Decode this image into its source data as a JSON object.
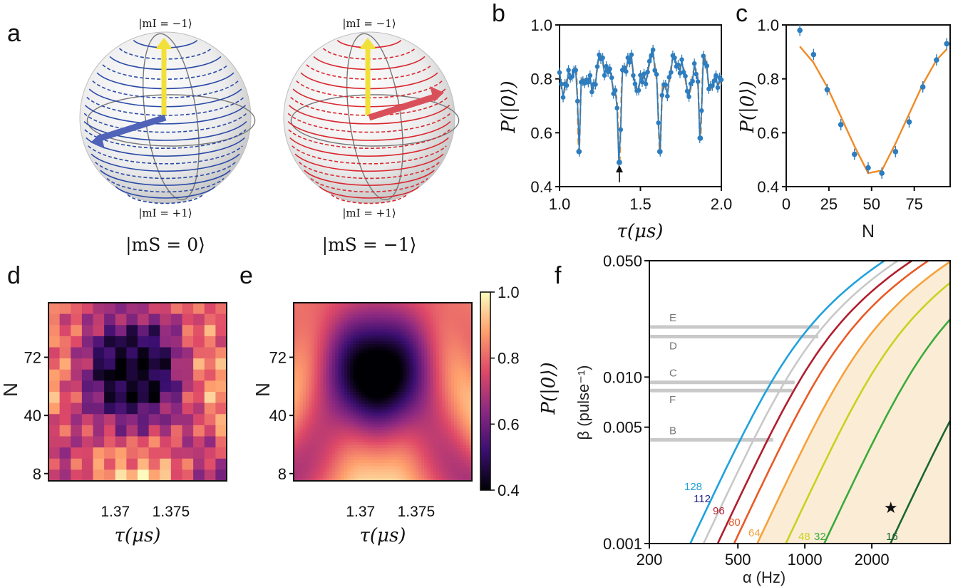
{
  "panels": {
    "a": {
      "label": "a",
      "spheres": [
        {
          "top_state": "|mI = −1⟩",
          "bottom_state": "|mI = +1⟩",
          "caption": "|mS = 0⟩",
          "color": "#2b4aa8",
          "arrow_color": "#4f63b8"
        },
        {
          "top_state": "|mI = −1⟩",
          "bottom_state": "|mI = +1⟩",
          "caption": "|mS = −1⟩",
          "color": "#d9282f",
          "arrow_color": "#d9505a"
        }
      ],
      "axis_color": "#f2e03a"
    },
    "b": {
      "label": "b"
    },
    "c": {
      "label": "c"
    },
    "d": {
      "label": "d"
    },
    "e": {
      "label": "e"
    },
    "f": {
      "label": "f"
    }
  },
  "chart_data": [
    {
      "id": "b",
      "type": "line",
      "xlabel": "τ(μs)",
      "ylabel": "P(|0⟩)",
      "xlim": [
        1.0,
        2.0
      ],
      "ylim": [
        0.4,
        1.0
      ],
      "xticks": [
        "1.0",
        "1.5",
        "2.0"
      ],
      "xtick_values": [
        1.0,
        1.5,
        2.0
      ],
      "yticks": [
        "0.4",
        "0.6",
        "0.8",
        "1.0"
      ],
      "ytick_values": [
        0.4,
        0.6,
        0.8,
        1.0
      ],
      "series": [
        {
          "name": "data",
          "color": "#2e7dbf",
          "dips": [
            [
              1.12,
              0.53
            ],
            [
              1.37,
              0.49
            ],
            [
              1.62,
              0.53
            ],
            [
              1.87,
              0.58
            ]
          ]
        },
        {
          "name": "fit",
          "color": "#f08a24"
        }
      ],
      "annotation": "arrow at τ = 1.37"
    },
    {
      "id": "c",
      "type": "scatter",
      "xlabel": "N",
      "ylabel": "P(|0⟩)",
      "xlim": [
        0,
        96
      ],
      "ylim": [
        0.4,
        1.0
      ],
      "xticks": [
        "0",
        "25",
        "50",
        "75"
      ],
      "xtick_values": [
        0,
        25,
        50,
        75
      ],
      "yticks": [
        "0.4",
        "0.6",
        "0.8",
        "1.0"
      ],
      "ytick_values": [
        0.4,
        0.6,
        0.8,
        1.0
      ],
      "x": [
        8,
        16,
        24,
        32,
        40,
        48,
        56,
        64,
        72,
        80,
        88,
        94
      ],
      "y": [
        0.98,
        0.89,
        0.76,
        0.63,
        0.52,
        0.47,
        0.45,
        0.53,
        0.64,
        0.77,
        0.87,
        0.93
      ],
      "fit_x": [
        8,
        16,
        24,
        32,
        40,
        48,
        56,
        64,
        72,
        80,
        88,
        94
      ],
      "fit_y": [
        0.92,
        0.86,
        0.77,
        0.66,
        0.55,
        0.45,
        0.46,
        0.56,
        0.67,
        0.78,
        0.87,
        0.91
      ],
      "colors": {
        "data": "#2e7dbf",
        "fit": "#f08a24"
      }
    },
    {
      "id": "d",
      "type": "heatmap",
      "xlabel": "τ(μs)",
      "ylabel": "N",
      "xticks": [
        "1.37",
        "1.375"
      ],
      "xtick_values": [
        1.37,
        1.375
      ],
      "yticks": [
        "8",
        "40",
        "72"
      ],
      "ytick_values": [
        8,
        40,
        72
      ],
      "xlim": [
        1.364,
        1.38
      ],
      "ylim": [
        4,
        102
      ],
      "rows": 16,
      "cols": 16
    },
    {
      "id": "e",
      "type": "heatmap",
      "xlabel": "τ(μs)",
      "ylabel": "N",
      "xticks": [
        "1.37",
        "1.375"
      ],
      "xtick_values": [
        1.37,
        1.375
      ],
      "yticks": [
        "8",
        "40",
        "72"
      ],
      "ytick_values": [
        8,
        40,
        72
      ],
      "xlim": [
        1.364,
        1.38
      ],
      "ylim": [
        4,
        102
      ],
      "colorbar": {
        "label": "P(|0⟩)",
        "range": [
          0.4,
          1.0
        ],
        "ticks": [
          "0.4",
          "0.6",
          "0.8",
          "1.0"
        ],
        "tick_values": [
          0.4,
          0.6,
          0.8,
          1.0
        ]
      }
    },
    {
      "id": "f",
      "type": "line",
      "xlabel": "α (Hz)",
      "ylabel": "β (pulse⁻¹)",
      "xscale": "log",
      "yscale": "log",
      "xlim": [
        200,
        4500
      ],
      "ylim": [
        0.001,
        0.05
      ],
      "xticks": [
        "200",
        "500",
        "1000",
        "2000"
      ],
      "xtick_values": [
        200,
        500,
        1000,
        2000
      ],
      "yticks": [
        "0.001",
        "0.005",
        "0.010",
        "0.050"
      ],
      "ytick_values": [
        0.001,
        0.005,
        0.01,
        0.05
      ],
      "curves": [
        {
          "n": "128",
          "alpha0": 305,
          "color": "#1fa2dc"
        },
        {
          "n": "112",
          "alpha0": 350,
          "color": "#c8c8c8",
          "label_color": "#2a2a8a"
        },
        {
          "n": "96",
          "alpha0": 405,
          "color": "#b01e2e"
        },
        {
          "n": "80",
          "alpha0": 480,
          "color": "#e85a26"
        },
        {
          "n": "64",
          "alpha0": 610,
          "color": "#f5a23a"
        },
        {
          "n": "48",
          "alpha0": 820,
          "color": "#c8d21e"
        },
        {
          "n": "32",
          "alpha0": 1220,
          "color": "#3aaa3a"
        },
        {
          "n": "16",
          "alpha0": 2420,
          "color": "#1a6630"
        }
      ],
      "levels": [
        {
          "name": "E",
          "beta": 0.02,
          "alpha_end": 1160
        },
        {
          "name": "D",
          "beta": 0.0175,
          "alpha_end": 1150
        },
        {
          "name": "C",
          "beta": 0.0093,
          "alpha_end": 900
        },
        {
          "name": "F",
          "beta": 0.0083,
          "alpha_end": 880
        },
        {
          "name": "B",
          "beta": 0.0042,
          "alpha_end": 720
        }
      ],
      "marker": {
        "alpha": 2420,
        "beta": 0.00165,
        "symbol": "★"
      },
      "shade_color": "#fbecd6"
    }
  ]
}
